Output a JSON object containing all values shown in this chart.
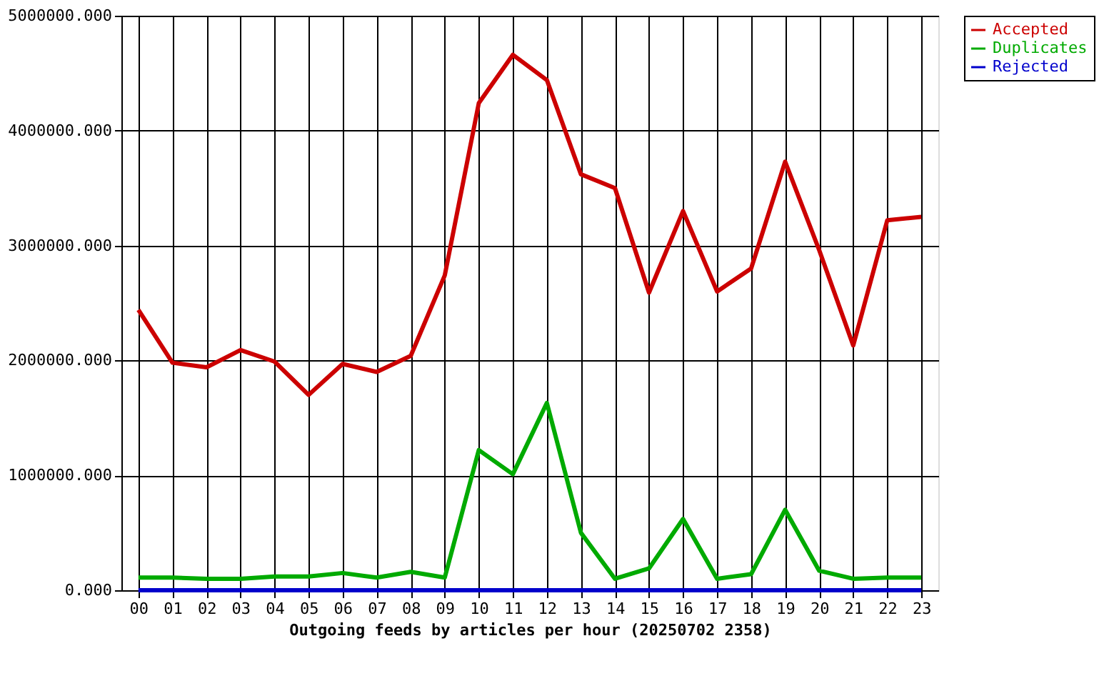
{
  "chart_data": {
    "type": "line",
    "xlabel": "Outgoing feeds by articles per hour (20250702 2358)",
    "categories": [
      "00",
      "01",
      "02",
      "03",
      "04",
      "05",
      "06",
      "07",
      "08",
      "09",
      "10",
      "11",
      "12",
      "13",
      "14",
      "15",
      "16",
      "17",
      "18",
      "19",
      "20",
      "21",
      "22",
      "23"
    ],
    "series": [
      {
        "name": "Accepted",
        "color": "#cc0000",
        "values": [
          2440000,
          1980000,
          1940000,
          2090000,
          1990000,
          1700000,
          1970000,
          1900000,
          2040000,
          2740000,
          4240000,
          4660000,
          4440000,
          3620000,
          3500000,
          2590000,
          3300000,
          2600000,
          2800000,
          3730000,
          2960000,
          2130000,
          3220000,
          3250000
        ]
      },
      {
        "name": "Duplicates",
        "color": "#00aa00",
        "values": [
          110000,
          110000,
          100000,
          100000,
          120000,
          120000,
          150000,
          110000,
          160000,
          110000,
          1220000,
          1010000,
          1630000,
          500000,
          100000,
          190000,
          620000,
          100000,
          140000,
          700000,
          170000,
          100000,
          110000,
          110000
        ]
      },
      {
        "name": "Rejected",
        "color": "#0000cc",
        "values": [
          0,
          0,
          0,
          0,
          0,
          0,
          0,
          0,
          0,
          0,
          0,
          0,
          0,
          0,
          0,
          0,
          0,
          0,
          0,
          0,
          0,
          0,
          0,
          0
        ]
      }
    ],
    "ylim": [
      0,
      5000000
    ],
    "yticks": [
      {
        "value": 0,
        "label": "0.000"
      },
      {
        "value": 1000000,
        "label": "1000000.000"
      },
      {
        "value": 2000000,
        "label": "2000000.000"
      },
      {
        "value": 3000000,
        "label": "3000000.000"
      },
      {
        "value": 4000000,
        "label": "4000000.000"
      },
      {
        "value": 5000000,
        "label": "5000000.000"
      }
    ],
    "grid": true,
    "legend": "top right"
  }
}
